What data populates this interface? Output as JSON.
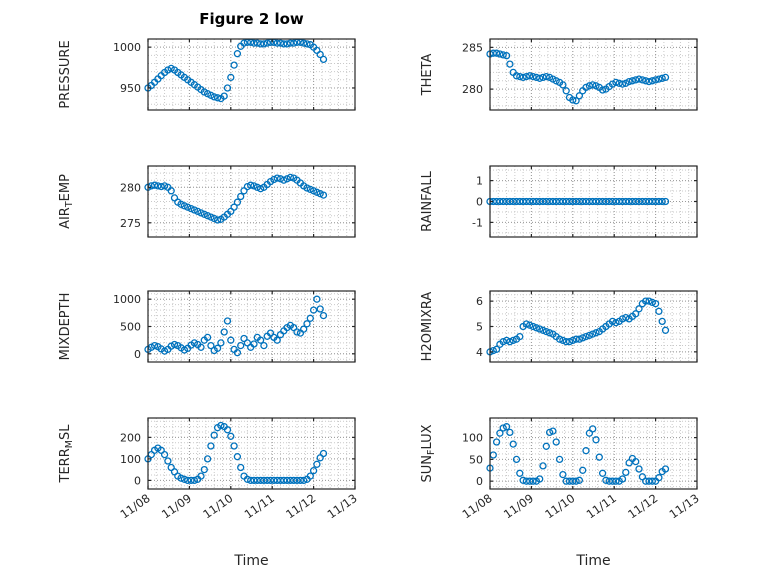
{
  "figure": {
    "title": "Figure 2 low",
    "xlabel": "Time",
    "accent_color": "#0072BD",
    "axis_color": "#262626",
    "grid_color": "#9a9a9a",
    "minor_grid_color": "#c9c9c9",
    "x_tick_labels": [
      "11/08",
      "11/09",
      "11/10",
      "11/11",
      "11/12",
      "11/13"
    ]
  },
  "chart_data": [
    {
      "id": "pressure",
      "name": "PRESSURE",
      "type": "scatter",
      "marker": "open-circle",
      "color": "#0072BD",
      "row": 0,
      "col": 0,
      "ylabel_parts": [
        {
          "text": "PRESSURE",
          "sub": false
        }
      ],
      "ylim": [
        923,
        1010
      ],
      "yticks": [
        950,
        1000
      ],
      "yminor_step": 10,
      "xlim_days": [
        0,
        5
      ],
      "xticks_days": [
        0,
        1,
        2,
        3,
        4,
        5
      ],
      "xminor_step": 0.2,
      "x_unit": "days after 11/08",
      "x_start": 0,
      "x_step": 0.08,
      "y": [
        950,
        953,
        957,
        961,
        965,
        969,
        972,
        974,
        972,
        969,
        966,
        963,
        960,
        957,
        954,
        951,
        948,
        945,
        943,
        941,
        939,
        938,
        937,
        940,
        950,
        963,
        978,
        992,
        1001,
        1005,
        1006,
        1006,
        1005,
        1005,
        1004,
        1004,
        1005,
        1006,
        1006,
        1005,
        1005,
        1004,
        1004,
        1005,
        1005,
        1006,
        1006,
        1005,
        1004,
        1003,
        1000,
        996,
        991,
        985
      ]
    },
    {
      "id": "theta",
      "name": "THETA",
      "type": "scatter",
      "marker": "open-circle",
      "color": "#0072BD",
      "row": 0,
      "col": 1,
      "ylabel_parts": [
        {
          "text": "THETA",
          "sub": false
        }
      ],
      "ylim": [
        277.5,
        286
      ],
      "yticks": [
        280,
        285
      ],
      "yminor_step": 1,
      "xlim_days": [
        0,
        5
      ],
      "xticks_days": [
        0,
        1,
        2,
        3,
        4,
        5
      ],
      "xminor_step": 0.2,
      "x_unit": "days after 11/08",
      "x_start": 0,
      "x_step": 0.08,
      "y": [
        284.2,
        284.3,
        284.3,
        284.2,
        284.1,
        284.0,
        283.0,
        282.0,
        281.6,
        281.5,
        281.4,
        281.5,
        281.6,
        281.5,
        281.4,
        281.3,
        281.4,
        281.5,
        281.4,
        281.2,
        281.0,
        280.8,
        280.5,
        279.8,
        279.0,
        278.7,
        278.6,
        279.2,
        279.8,
        280.2,
        280.4,
        280.5,
        280.4,
        280.2,
        279.9,
        280.0,
        280.3,
        280.6,
        280.8,
        280.7,
        280.6,
        280.7,
        280.9,
        281.0,
        281.1,
        281.2,
        281.1,
        281.0,
        280.9,
        281.0,
        281.1,
        281.2,
        281.3,
        281.4
      ]
    },
    {
      "id": "air-temp",
      "name": "AIR_TEMP",
      "type": "scatter",
      "marker": "open-circle",
      "color": "#0072BD",
      "row": 1,
      "col": 0,
      "ylabel_parts": [
        {
          "text": "AIR",
          "sub": false
        },
        {
          "text": "T",
          "sub": true
        },
        {
          "text": "EMP",
          "sub": false
        }
      ],
      "ylim": [
        273,
        283
      ],
      "yticks": [
        275,
        280
      ],
      "yminor_step": 1,
      "xlim_days": [
        0,
        5
      ],
      "xticks_days": [
        0,
        1,
        2,
        3,
        4,
        5
      ],
      "xminor_step": 0.2,
      "x_unit": "days after 11/08",
      "x_start": 0,
      "x_step": 0.08,
      "y": [
        280.0,
        280.2,
        280.3,
        280.2,
        280.1,
        280.2,
        280.0,
        279.5,
        278.5,
        277.9,
        277.6,
        277.4,
        277.2,
        277.0,
        276.8,
        276.6,
        276.4,
        276.2,
        276.0,
        275.8,
        275.6,
        275.4,
        275.5,
        275.8,
        276.2,
        276.6,
        277.2,
        277.9,
        278.7,
        279.5,
        280.1,
        280.3,
        280.2,
        280.0,
        279.8,
        280.0,
        280.4,
        280.8,
        281.1,
        281.3,
        281.2,
        281.0,
        281.2,
        281.4,
        281.3,
        281.0,
        280.6,
        280.2,
        279.9,
        279.7,
        279.5,
        279.3,
        279.1,
        278.9
      ]
    },
    {
      "id": "rainfall",
      "name": "RAINFALL",
      "type": "scatter",
      "marker": "open-circle",
      "color": "#0072BD",
      "row": 1,
      "col": 1,
      "ylabel_parts": [
        {
          "text": "RAINFALL",
          "sub": false
        }
      ],
      "ylim": [
        -1.7,
        1.7
      ],
      "yticks": [
        -1,
        0,
        1
      ],
      "yminor_step": 0.5,
      "xlim_days": [
        0,
        5
      ],
      "xticks_days": [
        0,
        1,
        2,
        3,
        4,
        5
      ],
      "xminor_step": 0.2,
      "x_unit": "days after 11/08",
      "x_start": 0,
      "x_step": 0.08,
      "y": [
        0,
        0,
        0,
        0,
        0,
        0,
        0,
        0,
        0,
        0,
        0,
        0,
        0,
        0,
        0,
        0,
        0,
        0,
        0,
        0,
        0,
        0,
        0,
        0,
        0,
        0,
        0,
        0,
        0,
        0,
        0,
        0,
        0,
        0,
        0,
        0,
        0,
        0,
        0,
        0,
        0,
        0,
        0,
        0,
        0,
        0,
        0,
        0,
        0,
        0,
        0,
        0,
        0,
        0
      ]
    },
    {
      "id": "mixdepth",
      "name": "MIXDEPTH",
      "type": "scatter",
      "marker": "open-circle",
      "color": "#0072BD",
      "row": 2,
      "col": 0,
      "ylabel_parts": [
        {
          "text": "MIXDEPTH",
          "sub": false
        }
      ],
      "ylim": [
        -150,
        1150
      ],
      "yticks": [
        0,
        500,
        1000
      ],
      "yminor_step": 100,
      "xlim_days": [
        0,
        5
      ],
      "xticks_days": [
        0,
        1,
        2,
        3,
        4,
        5
      ],
      "xminor_step": 0.2,
      "x_unit": "days after 11/08",
      "x_start": 0,
      "x_step": 0.08,
      "y": [
        80,
        120,
        150,
        130,
        90,
        50,
        80,
        140,
        170,
        150,
        110,
        70,
        100,
        160,
        200,
        170,
        120,
        250,
        300,
        150,
        60,
        100,
        200,
        400,
        600,
        250,
        80,
        20,
        150,
        280,
        200,
        120,
        180,
        300,
        250,
        150,
        320,
        380,
        300,
        250,
        350,
        420,
        480,
        520,
        480,
        400,
        380,
        450,
        550,
        650,
        800,
        1000,
        820,
        700
      ]
    },
    {
      "id": "h2omixra",
      "name": "H2OMIXRA",
      "type": "scatter",
      "marker": "open-circle",
      "color": "#0072BD",
      "row": 2,
      "col": 1,
      "ylabel_parts": [
        {
          "text": "H2OMIXRA",
          "sub": false
        }
      ],
      "ylim": [
        3.6,
        6.4
      ],
      "yticks": [
        4,
        5,
        6
      ],
      "yminor_step": 0.25,
      "xlim_days": [
        0,
        5
      ],
      "xticks_days": [
        0,
        1,
        2,
        3,
        4,
        5
      ],
      "xminor_step": 0.2,
      "x_unit": "days after 11/08",
      "x_start": 0,
      "x_step": 0.08,
      "y": [
        4.0,
        4.05,
        4.1,
        4.3,
        4.4,
        4.45,
        4.4,
        4.45,
        4.5,
        4.6,
        5.0,
        5.1,
        5.05,
        5.0,
        4.95,
        4.9,
        4.85,
        4.8,
        4.75,
        4.7,
        4.6,
        4.5,
        4.45,
        4.4,
        4.4,
        4.45,
        4.5,
        4.5,
        4.55,
        4.6,
        4.65,
        4.7,
        4.75,
        4.8,
        4.9,
        5.0,
        5.1,
        5.2,
        5.15,
        5.2,
        5.3,
        5.35,
        5.3,
        5.4,
        5.5,
        5.7,
        5.9,
        6.0,
        6.0,
        5.95,
        5.9,
        5.6,
        5.2,
        4.85
      ]
    },
    {
      "id": "terr-msl",
      "name": "TERR_MSL",
      "type": "scatter",
      "marker": "open-circle",
      "color": "#0072BD",
      "row": 3,
      "col": 0,
      "ylabel_parts": [
        {
          "text": "TERR",
          "sub": false
        },
        {
          "text": "M",
          "sub": true
        },
        {
          "text": "SL",
          "sub": false
        }
      ],
      "ylim": [
        -40,
        290
      ],
      "yticks": [
        0,
        100,
        200
      ],
      "yminor_step": 25,
      "xlim_days": [
        0,
        5
      ],
      "xticks_days": [
        0,
        1,
        2,
        3,
        4,
        5
      ],
      "xminor_step": 0.2,
      "x_unit": "days after 11/08",
      "x_start": 0,
      "x_step": 0.08,
      "y": [
        100,
        120,
        140,
        150,
        140,
        120,
        90,
        60,
        40,
        20,
        10,
        5,
        0,
        0,
        0,
        5,
        20,
        50,
        100,
        160,
        210,
        245,
        255,
        250,
        235,
        205,
        160,
        110,
        60,
        20,
        5,
        0,
        0,
        0,
        0,
        0,
        0,
        0,
        0,
        0,
        0,
        0,
        0,
        0,
        0,
        0,
        0,
        0,
        5,
        20,
        45,
        75,
        105,
        125
      ]
    },
    {
      "id": "sun-flux",
      "name": "SUN_FLUX",
      "type": "scatter",
      "marker": "open-circle",
      "color": "#0072BD",
      "row": 3,
      "col": 1,
      "ylabel_parts": [
        {
          "text": "SUN",
          "sub": false
        },
        {
          "text": "F",
          "sub": true
        },
        {
          "text": "LUX",
          "sub": false
        }
      ],
      "ylim": [
        -18,
        145
      ],
      "yticks": [
        0,
        50,
        100
      ],
      "yminor_step": 12.5,
      "xlim_days": [
        0,
        5
      ],
      "xticks_days": [
        0,
        1,
        2,
        3,
        4,
        5
      ],
      "xminor_step": 0.2,
      "x_unit": "days after 11/08",
      "x_start": 0,
      "x_step": 0.08,
      "y": [
        30,
        60,
        90,
        110,
        122,
        125,
        112,
        85,
        50,
        18,
        2,
        0,
        0,
        0,
        0,
        5,
        35,
        80,
        112,
        115,
        90,
        50,
        15,
        0,
        0,
        0,
        0,
        2,
        25,
        70,
        110,
        120,
        95,
        55,
        18,
        2,
        0,
        0,
        0,
        0,
        5,
        20,
        42,
        52,
        45,
        28,
        10,
        0,
        0,
        0,
        0,
        8,
        22,
        28
      ]
    }
  ]
}
